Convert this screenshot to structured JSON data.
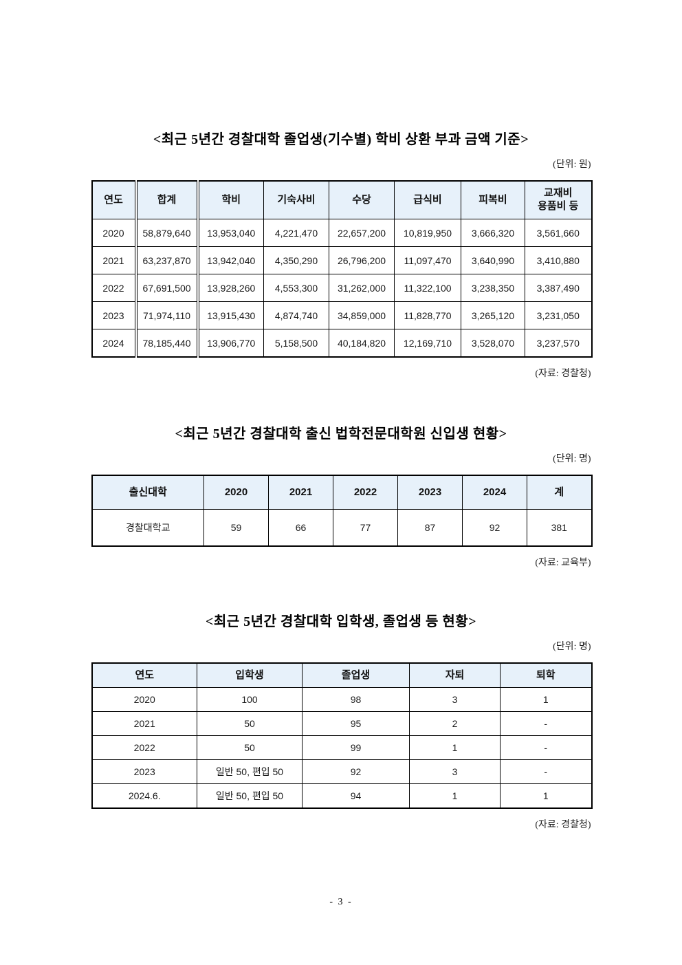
{
  "colors": {
    "table_header_bg": "#e7f1fa",
    "border": "#000000"
  },
  "page": {
    "page_number": "- 3 -"
  },
  "tables": [
    {
      "title": "<최근 5년간 경찰대학 졸업생(기수별) 학비 상환 부과 금액 기준>",
      "unit": "(단위: 원)",
      "source": "(자료: 경찰청)",
      "headers": [
        "연도",
        "합계",
        "학비",
        "기숙사비",
        "수당",
        "급식비",
        "피복비",
        "교재비\n용품비 등"
      ],
      "rows": [
        [
          "2020",
          "58,879,640",
          "13,953,040",
          "4,221,470",
          "22,657,200",
          "10,819,950",
          "3,666,320",
          "3,561,660"
        ],
        [
          "2021",
          "63,237,870",
          "13,942,040",
          "4,350,290",
          "26,796,200",
          "11,097,470",
          "3,640,990",
          "3,410,880"
        ],
        [
          "2022",
          "67,691,500",
          "13,928,260",
          "4,553,300",
          "31,262,000",
          "11,322,100",
          "3,238,350",
          "3,387,490"
        ],
        [
          "2023",
          "71,974,110",
          "13,915,430",
          "4,874,740",
          "34,859,000",
          "11,828,770",
          "3,265,120",
          "3,231,050"
        ],
        [
          "2024",
          "78,185,440",
          "13,906,770",
          "5,158,500",
          "40,184,820",
          "12,169,710",
          "3,528,070",
          "3,237,570"
        ]
      ]
    },
    {
      "title": "<최근 5년간 경찰대학 출신 법학전문대학원 신입생 현황>",
      "unit": "(단위: 명)",
      "source": "(자료: 교육부)",
      "headers": [
        "출신대학",
        "2020",
        "2021",
        "2022",
        "2023",
        "2024",
        "계"
      ],
      "rows": [
        [
          "경찰대학교",
          "59",
          "66",
          "77",
          "87",
          "92",
          "381"
        ]
      ]
    },
    {
      "title": "<최근 5년간 경찰대학 입학생, 졸업생 등 현황>",
      "unit": "(단위: 명)",
      "source": "(자료: 경찰청)",
      "headers": [
        "연도",
        "입학생",
        "졸업생",
        "자퇴",
        "퇴학"
      ],
      "rows": [
        [
          "2020",
          "100",
          "98",
          "3",
          "1"
        ],
        [
          "2021",
          "50",
          "95",
          "2",
          "-"
        ],
        [
          "2022",
          "50",
          "99",
          "1",
          "-"
        ],
        [
          "2023",
          "일반 50, 편입 50",
          "92",
          "3",
          "-"
        ],
        [
          "2024.6.",
          "일반 50, 편입 50",
          "94",
          "1",
          "1"
        ]
      ]
    }
  ]
}
